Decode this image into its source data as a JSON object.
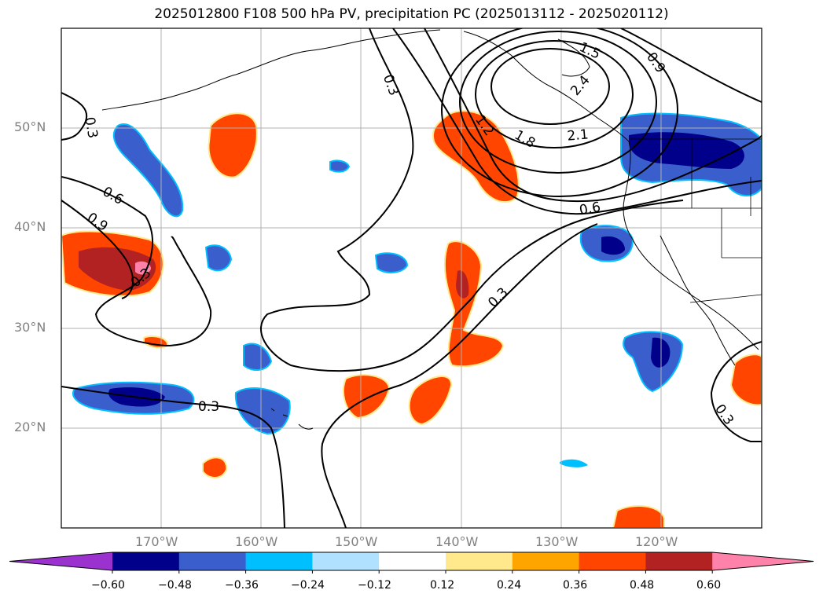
{
  "title": "2025012800 F108 500 hPa PV, precipitation PC (2025013112 - 2025020112)",
  "map": {
    "lat_labels": [
      "50°N",
      "40°N",
      "30°N",
      "20°N"
    ],
    "lon_labels": [
      "170°W",
      "160°W",
      "150°W",
      "140°W",
      "130°W",
      "120°W"
    ],
    "contour_labels": [
      "0.3",
      "0.6",
      "0.9",
      "1.2",
      "1.5",
      "1.8",
      "2.1",
      "2.4",
      "0.3",
      "0.6",
      "0.9",
      "0.3",
      "0.3",
      "0.3",
      "0.9",
      "0.3"
    ]
  },
  "colorbar": {
    "ticks": [
      "−0.60",
      "−0.48",
      "−0.36",
      "−0.24",
      "−0.12",
      "0.12",
      "0.24",
      "0.36",
      "0.48",
      "0.60"
    ],
    "colors": [
      "#9b32d0",
      "#00008b",
      "#3a5fcd",
      "#00bfff",
      "#b0e2ff",
      "#ffffff",
      "#ffe98c",
      "#ffa500",
      "#ff4500",
      "#b22222",
      "#ff82ab"
    ]
  }
}
